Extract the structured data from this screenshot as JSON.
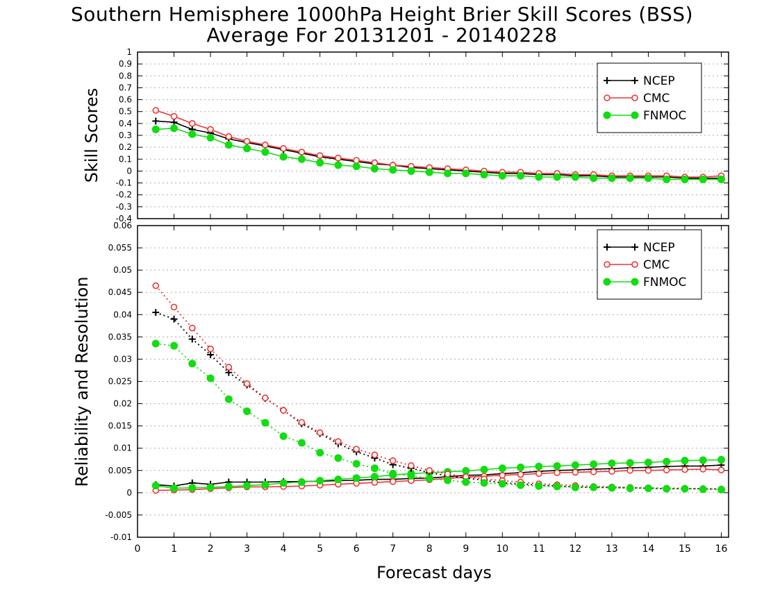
{
  "figure": {
    "title_line1": "Southern Hemisphere 1000hPa Height Brier Skill Scores (BSS)",
    "title_line2": "Average For 20131201 - 20140228",
    "colors": {
      "NCEP": "#000000",
      "CMC": "#ee3333",
      "FNMOC": "#11dd11",
      "grid": "#aaaaaa"
    }
  },
  "chart_data": [
    {
      "type": "line",
      "panel": "top",
      "title": "",
      "xlabel": "",
      "ylabel": "Skill Scores",
      "xlim": [
        0,
        16.2
      ],
      "ylim": [
        -0.4,
        1
      ],
      "yticks": [
        -0.4,
        -0.3,
        -0.2,
        -0.1,
        0,
        0.1,
        0.2,
        0.3,
        0.4,
        0.5,
        0.6,
        0.7,
        0.8,
        0.9,
        1
      ],
      "ytick_labels": [
        "-0.4",
        "-0.3",
        "-0.2",
        "-0.1",
        "0",
        "0.1",
        "0.2",
        "0.3",
        "0.4",
        "0.5",
        "0.6",
        "0.7",
        "0.8",
        "0.9",
        "1"
      ],
      "grid": true,
      "legend": "top-right",
      "x": [
        0.5,
        1,
        1.5,
        2,
        2.5,
        3,
        3.5,
        4,
        4.5,
        5,
        5.5,
        6,
        6.5,
        7,
        7.5,
        8,
        8.5,
        9,
        9.5,
        10,
        10.5,
        11,
        11.5,
        12,
        12.5,
        13,
        13.5,
        14,
        14.5,
        15,
        15.5,
        16
      ],
      "series": [
        {
          "name": "NCEP",
          "marker": "plus",
          "style": "solid",
          "values": [
            0.42,
            0.41,
            0.35,
            0.32,
            0.27,
            0.24,
            0.21,
            0.18,
            0.15,
            0.12,
            0.1,
            0.08,
            0.06,
            0.05,
            0.03,
            0.02,
            0.01,
            0.0,
            -0.01,
            -0.02,
            -0.02,
            -0.03,
            -0.03,
            -0.04,
            -0.04,
            -0.05,
            -0.05,
            -0.05,
            -0.05,
            -0.06,
            -0.06,
            -0.06
          ]
        },
        {
          "name": "CMC",
          "marker": "open-circle",
          "style": "solid",
          "values": [
            0.51,
            0.46,
            0.4,
            0.35,
            0.29,
            0.25,
            0.22,
            0.19,
            0.16,
            0.13,
            0.11,
            0.09,
            0.07,
            0.05,
            0.04,
            0.03,
            0.02,
            0.01,
            0.0,
            -0.01,
            -0.01,
            -0.02,
            -0.02,
            -0.03,
            -0.03,
            -0.04,
            -0.04,
            -0.04,
            -0.04,
            -0.05,
            -0.05,
            -0.04
          ]
        },
        {
          "name": "FNMOC",
          "marker": "filled-circle",
          "style": "solid",
          "values": [
            0.35,
            0.36,
            0.31,
            0.28,
            0.22,
            0.19,
            0.16,
            0.12,
            0.1,
            0.07,
            0.05,
            0.04,
            0.02,
            0.01,
            0.0,
            -0.01,
            -0.02,
            -0.02,
            -0.03,
            -0.04,
            -0.04,
            -0.05,
            -0.05,
            -0.05,
            -0.06,
            -0.06,
            -0.06,
            -0.06,
            -0.07,
            -0.07,
            -0.07,
            -0.07
          ]
        }
      ]
    },
    {
      "type": "line",
      "panel": "bottom",
      "title": "",
      "xlabel": "Forecast days",
      "ylabel": "Reliability and Resolution",
      "xlim": [
        0,
        16.2
      ],
      "ylim": [
        -0.01,
        0.06
      ],
      "xticks": [
        0,
        1,
        2,
        3,
        4,
        5,
        6,
        7,
        8,
        9,
        10,
        11,
        12,
        13,
        14,
        15,
        16
      ],
      "xtick_labels": [
        "0",
        "1",
        "2",
        "3",
        "4",
        "5",
        "6",
        "7",
        "8",
        "9",
        "10",
        "11",
        "12",
        "13",
        "14",
        "15",
        "16"
      ],
      "yticks": [
        -0.01,
        -0.005,
        0,
        0.005,
        0.01,
        0.015,
        0.02,
        0.025,
        0.03,
        0.035,
        0.04,
        0.045,
        0.05,
        0.055,
        0.06
      ],
      "ytick_labels": [
        "-0.01",
        "-0.005",
        "0",
        "0.005",
        "0.01",
        "0.015",
        "0.02",
        "0.025",
        "0.03",
        "0.035",
        "0.04",
        "0.045",
        "0.05",
        "0.055",
        "0.06"
      ],
      "grid": true,
      "legend": "top-right",
      "x": [
        0.5,
        1,
        1.5,
        2,
        2.5,
        3,
        3.5,
        4,
        4.5,
        5,
        5.5,
        6,
        6.5,
        7,
        7.5,
        8,
        8.5,
        9,
        9.5,
        10,
        10.5,
        11,
        11.5,
        12,
        12.5,
        13,
        13.5,
        14,
        14.5,
        15,
        15.5,
        16
      ],
      "series": [
        {
          "name": "NCEP",
          "metric": "reliability",
          "marker": "plus",
          "style": "solid",
          "values": [
            0.0018,
            0.0015,
            0.0022,
            0.0019,
            0.0024,
            0.0024,
            0.0024,
            0.0025,
            0.0025,
            0.0026,
            0.0027,
            0.0028,
            0.003,
            0.003,
            0.0032,
            0.0033,
            0.0036,
            0.0039,
            0.004,
            0.0043,
            0.0045,
            0.0048,
            0.005,
            0.0051,
            0.0053,
            0.0054,
            0.0056,
            0.0057,
            0.0059,
            0.006,
            0.006,
            0.0062
          ]
        },
        {
          "name": "CMC",
          "metric": "reliability",
          "marker": "open-circle",
          "style": "solid",
          "values": [
            0.0005,
            0.0006,
            0.0007,
            0.0009,
            0.0011,
            0.0013,
            0.0013,
            0.0014,
            0.0015,
            0.0017,
            0.0019,
            0.0021,
            0.0023,
            0.0025,
            0.0027,
            0.0029,
            0.0032,
            0.0035,
            0.0037,
            0.0039,
            0.0041,
            0.0043,
            0.0045,
            0.0046,
            0.0047,
            0.0048,
            0.005,
            0.005,
            0.0051,
            0.0052,
            0.0053,
            0.0051
          ]
        },
        {
          "name": "FNMOC",
          "metric": "reliability",
          "marker": "filled-circle",
          "style": "solid",
          "values": [
            0.0016,
            0.001,
            0.0011,
            0.0012,
            0.0014,
            0.0016,
            0.0018,
            0.0022,
            0.0024,
            0.0027,
            0.003,
            0.0033,
            0.0036,
            0.004,
            0.0043,
            0.0045,
            0.0047,
            0.0049,
            0.0052,
            0.0055,
            0.0057,
            0.0059,
            0.006,
            0.0062,
            0.0064,
            0.0066,
            0.0067,
            0.0068,
            0.007,
            0.0072,
            0.0073,
            0.0074
          ]
        },
        {
          "name": "NCEP",
          "metric": "resolution",
          "marker": "plus",
          "style": "dotted",
          "values": [
            0.0405,
            0.039,
            0.0345,
            0.031,
            0.027,
            0.0242,
            0.0212,
            0.0185,
            0.0155,
            0.0133,
            0.011,
            0.0092,
            0.0078,
            0.0063,
            0.0055,
            0.0045,
            0.0038,
            0.0033,
            0.0028,
            0.0022,
            0.002,
            0.0017,
            0.0015,
            0.0013,
            0.0012,
            0.0012,
            0.0011,
            0.001,
            0.0009,
            0.0009,
            0.0009,
            0.0008
          ]
        },
        {
          "name": "CMC",
          "metric": "resolution",
          "marker": "open-circle",
          "style": "dotted",
          "values": [
            0.0465,
            0.0417,
            0.037,
            0.0323,
            0.0282,
            0.0245,
            0.0213,
            0.0185,
            0.0158,
            0.0135,
            0.0115,
            0.0098,
            0.0085,
            0.0072,
            0.0061,
            0.005,
            0.0042,
            0.0036,
            0.0031,
            0.0027,
            0.0024,
            0.002,
            0.0018,
            0.0016,
            0.0014,
            0.0013,
            0.0012,
            0.0011,
            0.001,
            0.001,
            0.0009,
            0.0008
          ]
        },
        {
          "name": "FNMOC",
          "metric": "resolution",
          "marker": "filled-circle",
          "style": "dotted",
          "values": [
            0.0335,
            0.033,
            0.029,
            0.0257,
            0.021,
            0.0183,
            0.0157,
            0.0127,
            0.0112,
            0.009,
            0.0078,
            0.0065,
            0.0055,
            0.0043,
            0.0038,
            0.0032,
            0.0028,
            0.0024,
            0.0022,
            0.002,
            0.0017,
            0.0015,
            0.0014,
            0.0012,
            0.0012,
            0.0011,
            0.001,
            0.001,
            0.0009,
            0.0009,
            0.0008,
            0.0007
          ]
        }
      ]
    }
  ]
}
